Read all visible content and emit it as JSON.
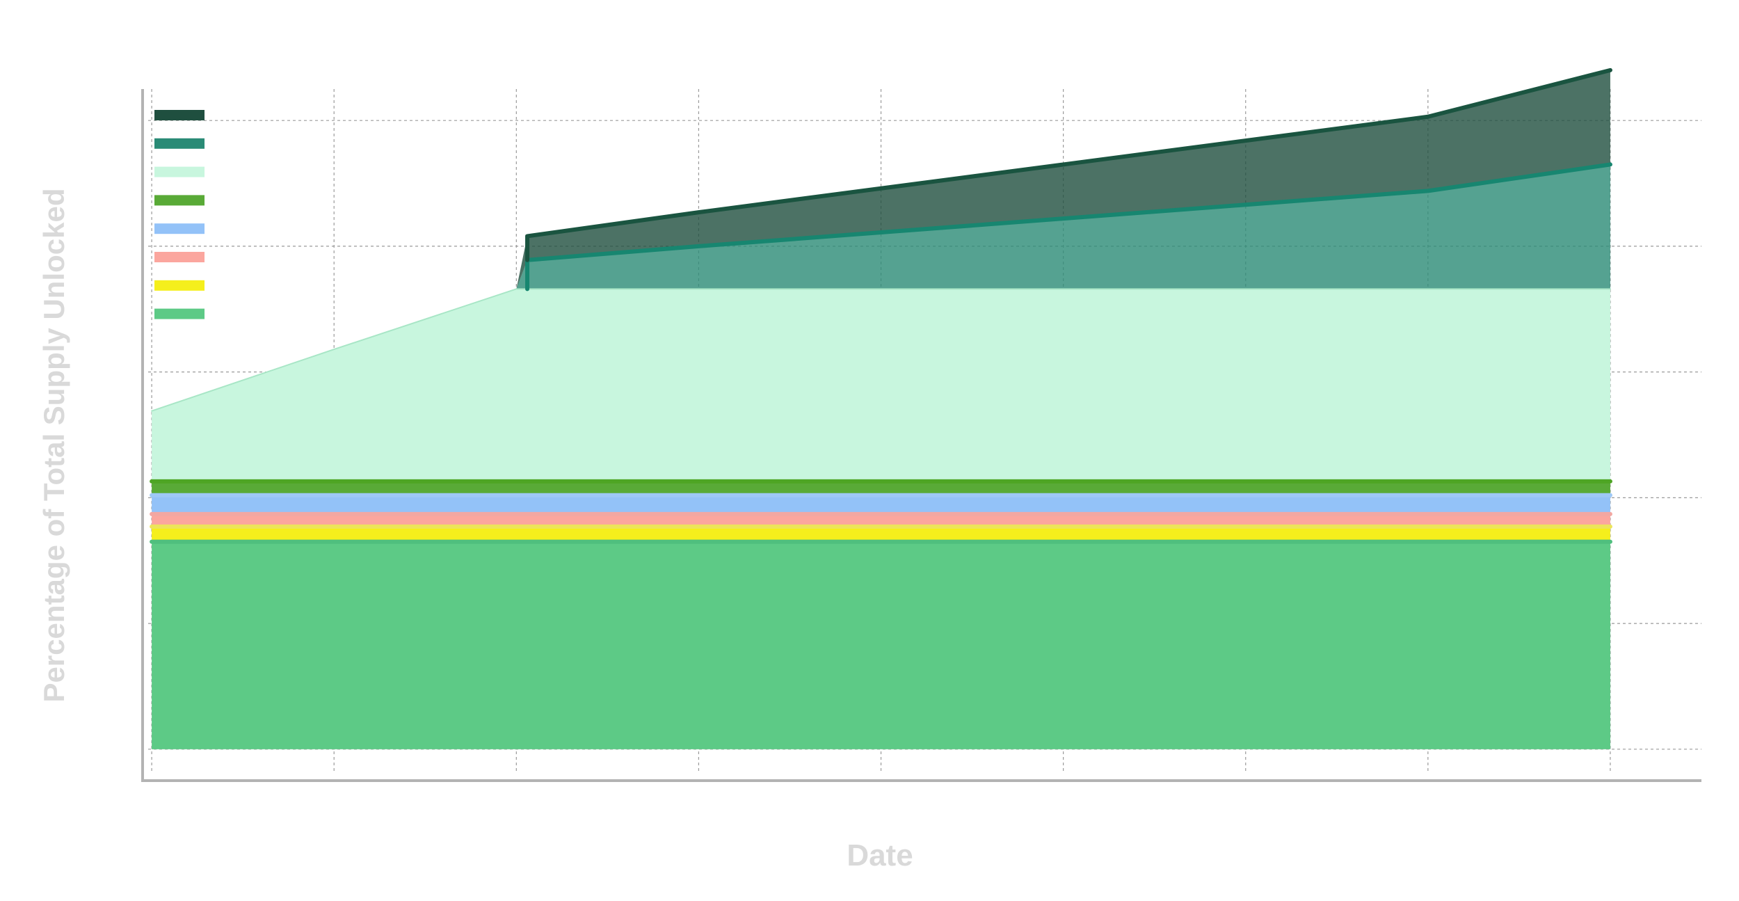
{
  "chart_data": {
    "type": "area",
    "stacked": true,
    "title": "",
    "xlabel": "Date",
    "ylabel": "Percentage of Total Supply Unlocked",
    "grid": true,
    "legend_position": "top-left",
    "x": [
      0,
      1,
      2,
      2.06,
      3,
      4,
      5,
      6,
      7,
      8
    ],
    "xlim": [
      -0.05,
      8.5
    ],
    "ylim": [
      -0.25,
      5.25
    ],
    "series": [
      {
        "color": "#5dca86",
        "edge": "#4fbf7e",
        "values": [
          1.65,
          1.65,
          1.65,
          1.65,
          1.65,
          1.65,
          1.65,
          1.65,
          1.65,
          1.65
        ]
      },
      {
        "color": "#f5ef1c",
        "edge": "#ece45a",
        "values": [
          0.12,
          0.12,
          0.12,
          0.12,
          0.12,
          0.12,
          0.12,
          0.12,
          0.12,
          0.12
        ]
      },
      {
        "color": "#fba69e",
        "edge": "#f2a7a2",
        "values": [
          0.1,
          0.1,
          0.1,
          0.1,
          0.1,
          0.1,
          0.1,
          0.1,
          0.1,
          0.1
        ]
      },
      {
        "color": "#93c2f8",
        "edge": "#9ec8f7",
        "values": [
          0.15,
          0.15,
          0.15,
          0.15,
          0.15,
          0.15,
          0.15,
          0.15,
          0.15,
          0.15
        ]
      },
      {
        "color": "#59aa37",
        "edge": "#4ea524",
        "values": [
          0.11,
          0.11,
          0.11,
          0.11,
          0.11,
          0.11,
          0.11,
          0.11,
          0.11,
          0.11
        ]
      },
      {
        "color": "#c8f6de",
        "edge": "#a8e6c6",
        "values": [
          0.56,
          1.05,
          1.53,
          1.53,
          1.53,
          1.53,
          1.53,
          1.53,
          1.53,
          1.53
        ]
      },
      {
        "color": "#2a8b76",
        "edge": "#178670",
        "values": [
          0,
          0,
          0,
          0.23,
          0.34,
          0.45,
          0.56,
          0.67,
          0.78,
          0.99
        ]
      },
      {
        "color": "#1f4f3f",
        "edge": "#1a5440",
        "values": [
          0,
          0,
          0,
          0.19,
          0.27,
          0.35,
          0.43,
          0.51,
          0.59,
          0.75
        ]
      }
    ]
  }
}
